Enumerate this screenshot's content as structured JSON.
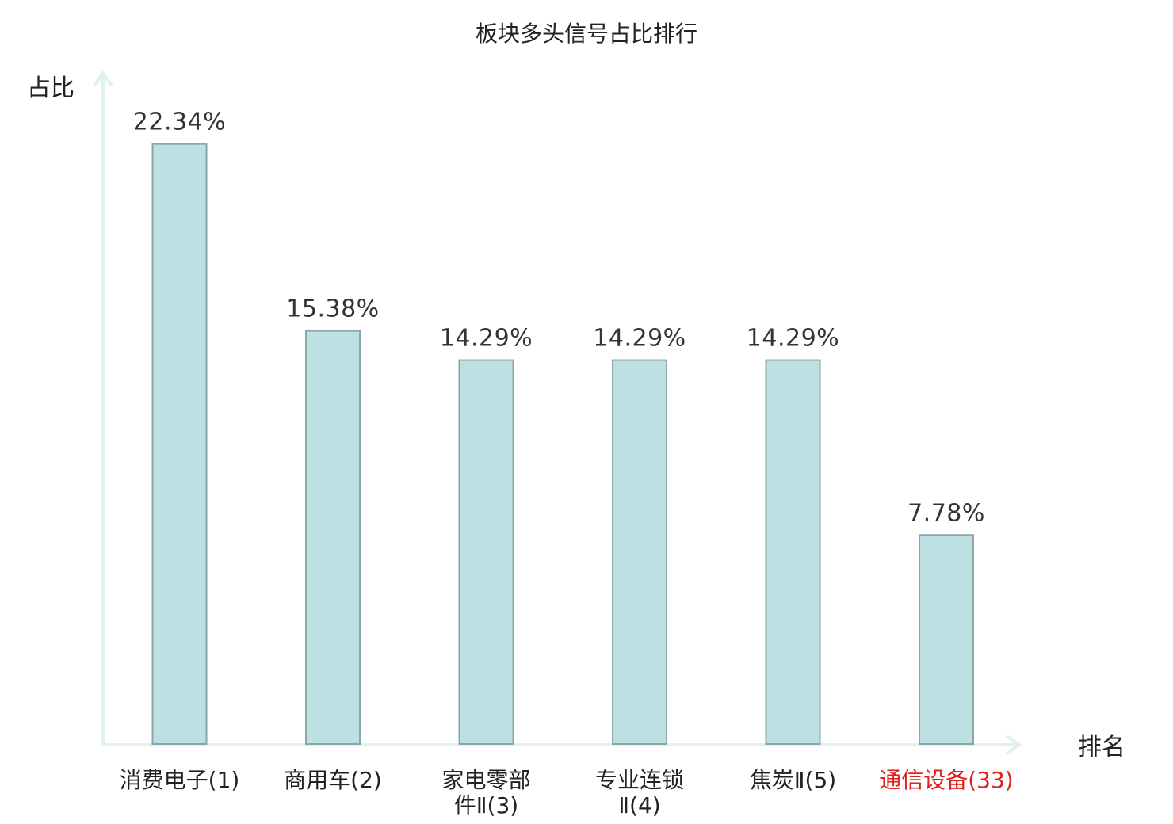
{
  "chart_data": {
    "type": "bar",
    "title": "板块多头信号占比排行",
    "ylabel": "占比",
    "xlabel": "排名",
    "categories": [
      [
        "消费电子(1)"
      ],
      [
        "商用车(2)"
      ],
      [
        "家电零部",
        "件Ⅱ(3)"
      ],
      [
        "专业连锁",
        "Ⅱ(4)"
      ],
      [
        "焦炭Ⅱ(5)"
      ],
      [
        "通信设备(33)"
      ]
    ],
    "values": [
      22.34,
      15.38,
      14.29,
      14.29,
      14.29,
      7.78
    ],
    "value_labels": [
      "22.34%",
      "15.38%",
      "14.29%",
      "14.29%",
      "14.29%",
      "7.78%"
    ],
    "highlight_index": 5,
    "ylim": [
      0,
      25
    ],
    "grid": false,
    "legend": "none"
  },
  "colors": {
    "bar_fill": "#bde0e3",
    "bar_stroke": "#8aa6a9",
    "axis": "#dff2ef",
    "text": "#222222",
    "highlight_text": "#e0201b"
  }
}
